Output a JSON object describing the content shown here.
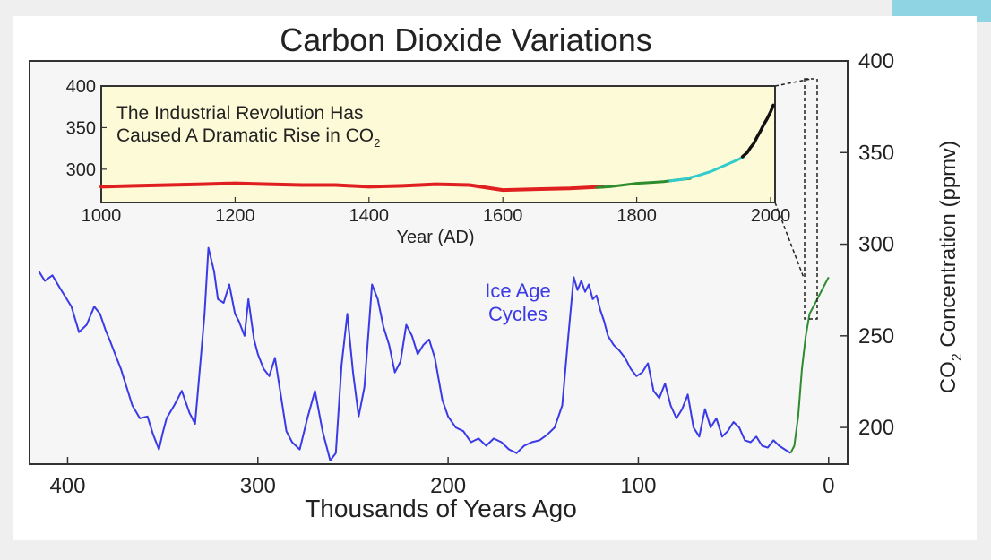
{
  "colors": {
    "ice_age_series": "#3a3ae6",
    "inset_background": "#fdfbd7",
    "plot_background": "#f6f6f6",
    "red_series": "#e02020",
    "green_series": "#2e8b2e",
    "cyan_series": "#33cccc",
    "black_series": "#111111"
  },
  "chart_data": [
    {
      "type": "line",
      "title": "Carbon Dioxide Variations",
      "xlabel": "Thousands of Years Ago",
      "ylabel": "CO2 Concentration (ppmv)",
      "ylabel_prefix": "CO",
      "ylabel_sub": "2",
      "ylabel_suffix": " Concentration (ppmv)",
      "xlim": [
        420,
        -10
      ],
      "ylim": [
        180,
        400
      ],
      "x_ticks": [
        400,
        300,
        200,
        100,
        0
      ],
      "y_ticks": [
        200,
        250,
        300,
        350,
        400
      ],
      "annotation_line1": "Ice Age",
      "annotation_line2": "Cycles",
      "series": [
        {
          "x": [
            415,
            412,
            408,
            404,
            398,
            394,
            390,
            386,
            383,
            380,
            378,
            375,
            372,
            369,
            366,
            362,
            358,
            355,
            352,
            350,
            348,
            344,
            340,
            336,
            333,
            330,
            328,
            326,
            323,
            321,
            318,
            315,
            312,
            310,
            307,
            305,
            302,
            300,
            297,
            294,
            291,
            288,
            285,
            282,
            278,
            274,
            270,
            266,
            262,
            259,
            256,
            253,
            250,
            247,
            244,
            240,
            237,
            234,
            231,
            228,
            225,
            222,
            219,
            216,
            213,
            210,
            207,
            203,
            200,
            196,
            192,
            188,
            184,
            180,
            176,
            172,
            168,
            164,
            160,
            156,
            152,
            148,
            144,
            140,
            137,
            134,
            132,
            130,
            128,
            126,
            124,
            122,
            120,
            118,
            116,
            113,
            110,
            107,
            104,
            101,
            98,
            95,
            92,
            89,
            86,
            83,
            80,
            77,
            74,
            71,
            68,
            65,
            62,
            59,
            56,
            53,
            50,
            47,
            44,
            41,
            38,
            35,
            32,
            29,
            26,
            23,
            20
          ],
          "y": [
            285,
            280,
            283,
            276,
            266,
            252,
            256,
            266,
            262,
            253,
            248,
            240,
            232,
            222,
            212,
            205,
            206,
            196,
            188,
            197,
            205,
            212,
            220,
            208,
            202,
            238,
            262,
            298,
            285,
            270,
            268,
            278,
            262,
            258,
            250,
            270,
            248,
            240,
            232,
            228,
            238,
            218,
            198,
            192,
            188,
            205,
            220,
            198,
            182,
            186,
            234,
            262,
            230,
            206,
            222,
            278,
            270,
            255,
            245,
            230,
            236,
            256,
            250,
            240,
            245,
            248,
            238,
            215,
            206,
            200,
            198,
            192,
            194,
            190,
            194,
            192,
            188,
            186,
            190,
            192,
            193,
            196,
            200,
            212,
            248,
            282,
            275,
            280,
            274,
            278,
            270,
            272,
            264,
            258,
            250,
            245,
            242,
            238,
            232,
            228,
            230,
            235,
            220,
            216,
            224,
            212,
            205,
            210,
            218,
            200,
            195,
            210,
            200,
            205,
            195,
            198,
            203,
            200,
            193,
            192,
            195,
            190,
            189,
            193,
            190,
            188,
            186
          ]
        },
        {
          "x": [
            20,
            18,
            16,
            14,
            12,
            10,
            8,
            6,
            4,
            2,
            0
          ],
          "y": [
            186,
            190,
            206,
            232,
            250,
            262,
            266,
            270,
            274,
            278,
            282
          ]
        }
      ]
    },
    {
      "type": "line",
      "title": "",
      "annotation_line1": "The Industrial Revolution Has",
      "annotation_line2_text": "Caused A Dramatic Rise in CO",
      "annotation_line2_sub": "2",
      "xlabel": "Year (AD)",
      "xlim": [
        1000,
        2000
      ],
      "ylim": [
        260,
        400
      ],
      "x_ticks": [
        1000,
        1200,
        1400,
        1600,
        1800,
        2000
      ],
      "y_ticks": [
        300,
        350,
        400
      ],
      "series": [
        {
          "x": [
            1000,
            1050,
            1100,
            1150,
            1200,
            1250,
            1300,
            1350,
            1400,
            1450,
            1500,
            1550,
            1600,
            1650,
            1700,
            1750
          ],
          "y": [
            279,
            280,
            281,
            282,
            283,
            282,
            281,
            281,
            279,
            280,
            282,
            281,
            275,
            276,
            277,
            279
          ]
        },
        {
          "x": [
            1740,
            1760,
            1780,
            1800,
            1820,
            1840,
            1860,
            1880
          ],
          "y": [
            278,
            279,
            281,
            283,
            284,
            285,
            287,
            289
          ]
        },
        {
          "x": [
            1850,
            1870,
            1890,
            1910,
            1930,
            1950,
            1960
          ],
          "y": [
            286,
            288,
            292,
            297,
            304,
            311,
            315
          ]
        },
        {
          "x": [
            1958,
            1965,
            1970,
            1975,
            1980,
            1985,
            1990,
            1995,
            2000,
            2004
          ],
          "y": [
            315,
            320,
            326,
            331,
            339,
            346,
            354,
            361,
            369,
            377
          ]
        }
      ]
    }
  ]
}
